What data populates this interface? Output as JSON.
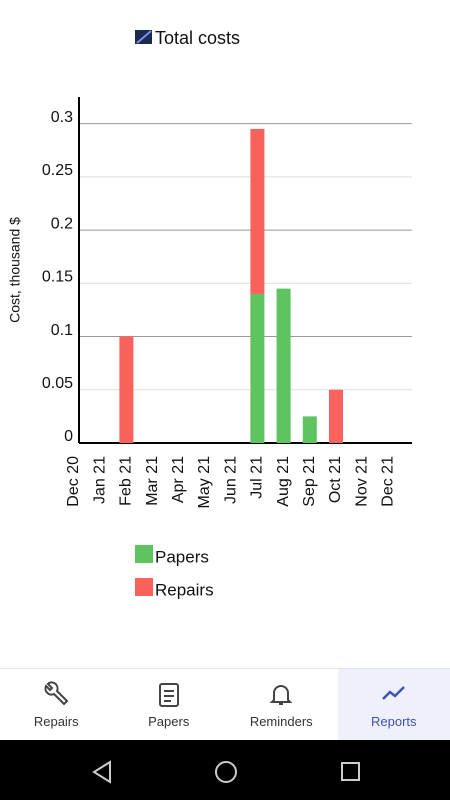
{
  "chart_data": {
    "type": "stacked_bar",
    "title": "Total costs",
    "y_label": "Cost, thousand $",
    "categories": [
      "Dec 20",
      "Jan 21",
      "Feb 21",
      "Mar 21",
      "Apr 21",
      "May 21",
      "Jun 21",
      "Jul 21",
      "Aug 21",
      "Sep 21",
      "Oct 21",
      "Nov 21",
      "Dec 21"
    ],
    "series": [
      {
        "name": "Papers",
        "color": "#5fc35f",
        "values": [
          0,
          0,
          0,
          0,
          0,
          0,
          0,
          0.14,
          0.145,
          0.025,
          0,
          0,
          0
        ]
      },
      {
        "name": "Repairs",
        "color": "#f8625a",
        "values": [
          0,
          0,
          0.1,
          0,
          0,
          0,
          0,
          0.155,
          0,
          0,
          0.05,
          0,
          0
        ]
      }
    ],
    "ylim": [
      0,
      0.325
    ],
    "yticks": [
      0,
      0.05,
      0.1,
      0.15,
      0.2,
      0.25,
      0.3
    ],
    "grid": true
  },
  "nav": {
    "items": [
      "Repairs",
      "Papers",
      "Reminders",
      "Reports"
    ]
  }
}
